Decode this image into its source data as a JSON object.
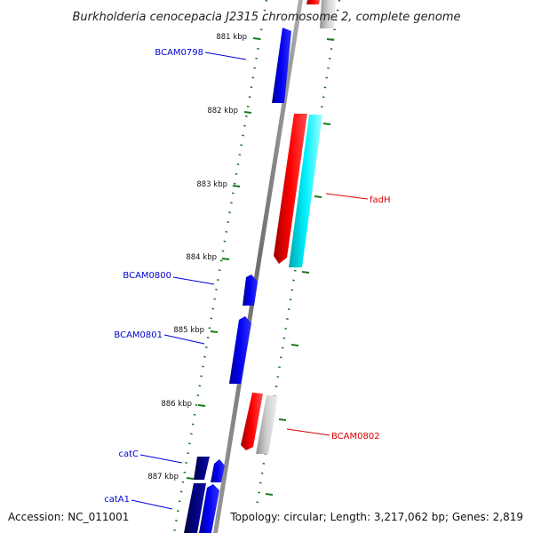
{
  "title": "Burkholderia cenocepacia J2315 chromosome 2, complete genome",
  "footer": {
    "accession": "Accession: NC_011001",
    "summary": "Topology: circular; Length: 3,217,062 bp; Genes: 2,819"
  },
  "ticks": [
    "881 kbp",
    "882 kbp",
    "883 kbp",
    "884 kbp",
    "885 kbp",
    "886 kbp",
    "887 kbp"
  ],
  "gene_labels": {
    "bcam0798": "BCAM0798",
    "fadH": "fadH",
    "bcam0800": "BCAM0800",
    "bcam0801": "BCAM0801",
    "bcam0802": "BCAM0802",
    "catC": "catC",
    "catA1": "catA1"
  },
  "colors": {
    "forward_gene": "#0000ee",
    "forward_gene_dark": "#000080",
    "reverse_gene": "#ee0000",
    "reverse_cds_cyan": "#00e5ee",
    "gray_feature": "#bdbdbd",
    "backbone": "#8c8c8c",
    "tick": "#1a7a1a"
  }
}
